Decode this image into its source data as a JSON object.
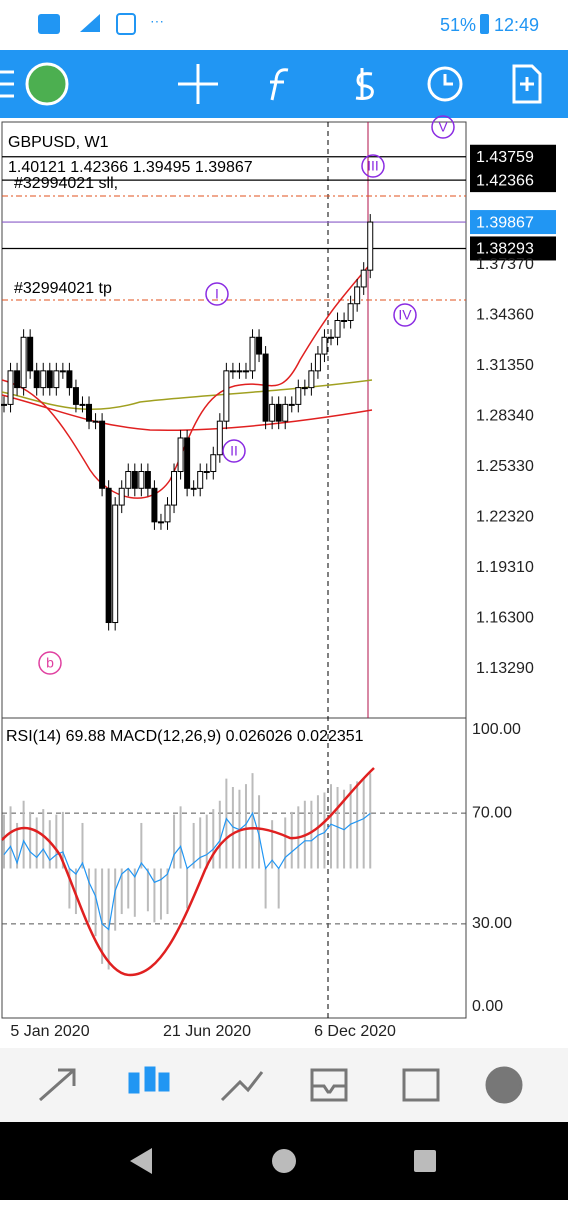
{
  "status": {
    "battery": "51%",
    "time": "12:49"
  },
  "chart": {
    "symbol": "GBPUSD, W1",
    "ohlc": "1.40121 1.42366 1.39495 1.39867",
    "sl_label": "#32994021 sll,",
    "tp_label": "#32994021 tp",
    "ylim": [
      1.1031,
      1.4583
    ],
    "price_ticks": [
      {
        "value": 1.43759,
        "label": "1.43759",
        "boxed": "black"
      },
      {
        "value": 1.42366,
        "label": "1.42366",
        "boxed": "black"
      },
      {
        "value": 1.39867,
        "label": "1.39867",
        "boxed": "blue"
      },
      {
        "value": 1.38293,
        "label": "1.38293",
        "boxed": "black"
      },
      {
        "value": 1.3737,
        "label": "1.37370"
      },
      {
        "value": 1.3436,
        "label": "1.34360"
      },
      {
        "value": 1.3135,
        "label": "1.31350"
      },
      {
        "value": 1.2834,
        "label": "1.28340"
      },
      {
        "value": 1.2533,
        "label": "1.25330"
      },
      {
        "value": 1.2232,
        "label": "1.22320"
      },
      {
        "value": 1.1931,
        "label": "1.19310"
      },
      {
        "value": 1.163,
        "label": "1.16300"
      },
      {
        "value": 1.1329,
        "label": "1.13290"
      }
    ],
    "closes": [
      1.29,
      1.31,
      1.3,
      1.33,
      1.31,
      1.3,
      1.31,
      1.3,
      1.31,
      1.31,
      1.3,
      1.29,
      1.29,
      1.28,
      1.28,
      1.24,
      1.16,
      1.23,
      1.24,
      1.25,
      1.24,
      1.25,
      1.24,
      1.22,
      1.22,
      1.23,
      1.25,
      1.27,
      1.24,
      1.24,
      1.25,
      1.25,
      1.26,
      1.28,
      1.31,
      1.31,
      1.31,
      1.31,
      1.33,
      1.32,
      1.28,
      1.29,
      1.28,
      1.29,
      1.29,
      1.3,
      1.3,
      1.31,
      1.32,
      1.33,
      1.33,
      1.34,
      1.34,
      1.35,
      1.36,
      1.37,
      1.39867
    ],
    "waves": [
      "V",
      "III",
      "I",
      "IV",
      "II",
      "b"
    ]
  },
  "indicator": {
    "text": "RSI(14) 69.88 MACD(12,26,9) 0.026026 0.022351",
    "ylim": [
      0,
      100
    ],
    "ticks": [
      {
        "value": 100,
        "label": "100.00"
      },
      {
        "value": 70,
        "label": "70.00"
      },
      {
        "value": 30,
        "label": "30.00"
      },
      {
        "value": 0,
        "label": "0.00"
      }
    ],
    "rsi": [
      55,
      58,
      52,
      60,
      56,
      54,
      57,
      53,
      55,
      56,
      50,
      48,
      52,
      45,
      40,
      30,
      28,
      42,
      48,
      50,
      47,
      52,
      49,
      45,
      46,
      48,
      55,
      58,
      50,
      52,
      54,
      55,
      57,
      60,
      68,
      65,
      64,
      66,
      70,
      62,
      50,
      53,
      50,
      54,
      56,
      58,
      60,
      60,
      62,
      63,
      66,
      65,
      64,
      66,
      67,
      68,
      69.88
    ]
  },
  "dates": [
    "5 Jan 2020",
    "21 Jun 2020",
    "6 Dec 2020"
  ]
}
